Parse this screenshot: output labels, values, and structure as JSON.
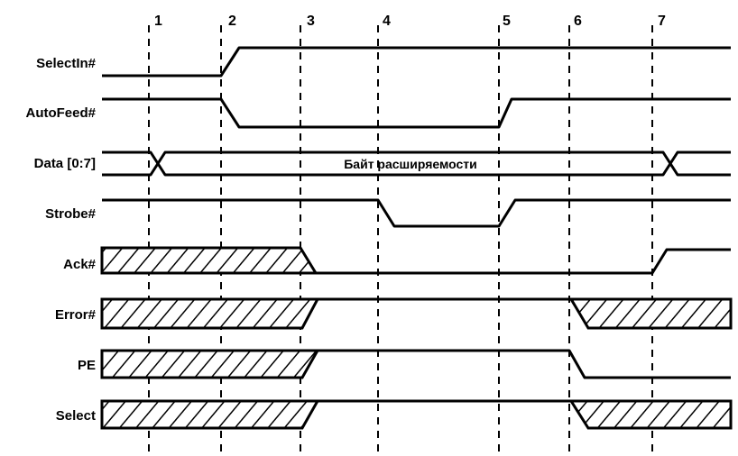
{
  "signals": [
    {
      "id": "selectin",
      "label": "SelectIn#"
    },
    {
      "id": "autofeed",
      "label": "AutoFeed#"
    },
    {
      "id": "data",
      "label": "Data [0:7]"
    },
    {
      "id": "strobe",
      "label": "Strobe#"
    },
    {
      "id": "ack",
      "label": "Ack#"
    },
    {
      "id": "error",
      "label": "Error#"
    },
    {
      "id": "pe",
      "label": "PE"
    },
    {
      "id": "select",
      "label": "Select"
    }
  ],
  "time_markers": [
    "1",
    "2",
    "3",
    "4",
    "5",
    "6",
    "7"
  ],
  "data_bus_label": "Байт расширяемости"
}
